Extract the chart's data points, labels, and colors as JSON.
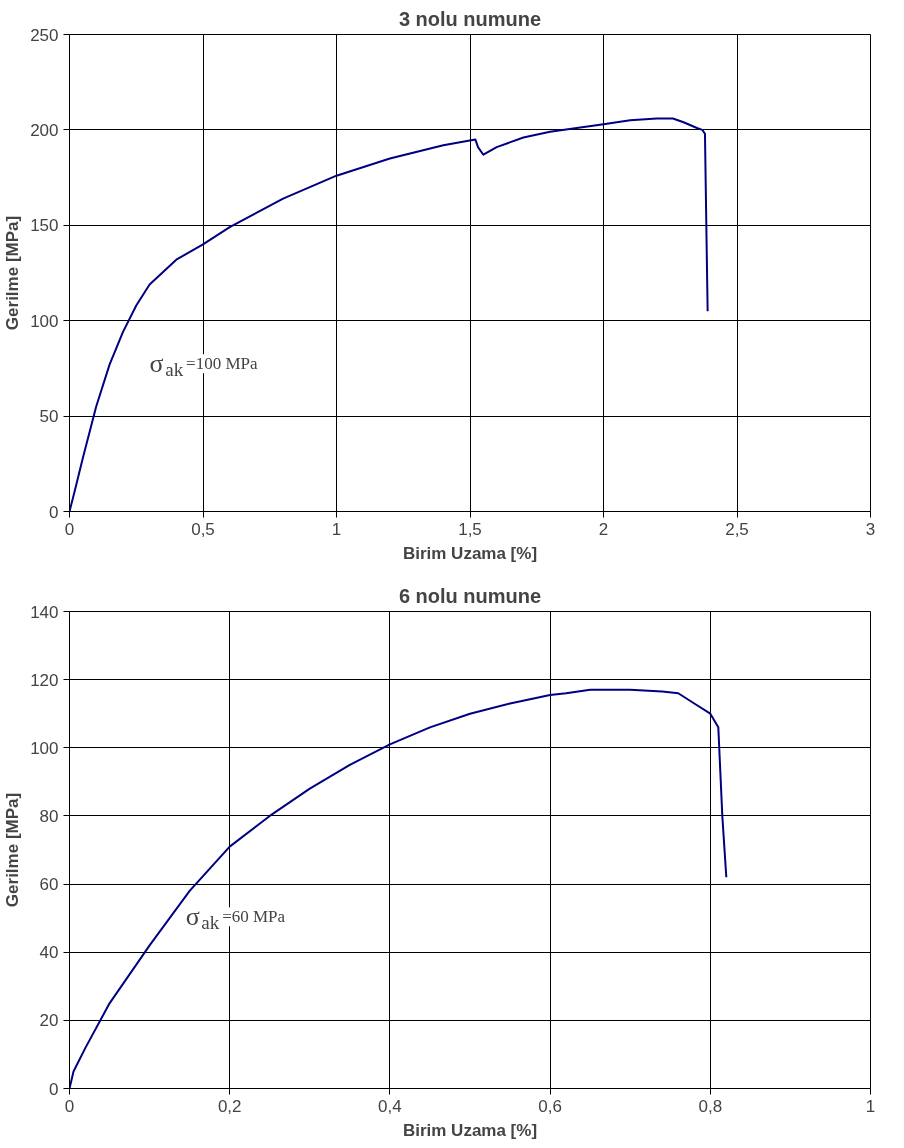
{
  "chart_data": [
    {
      "type": "line",
      "title": "3 nolu numune",
      "xlabel": "Birim Uzama [%]",
      "ylabel": "Gerilme [MPa]",
      "x": [
        0,
        0.02,
        0.05,
        0.1,
        0.15,
        0.2,
        0.25,
        0.3,
        0.4,
        0.5,
        0.6,
        0.8,
        1,
        1.2,
        1.4,
        1.52,
        1.53,
        1.55,
        1.6,
        1.7,
        1.8,
        2,
        2.1,
        2.2,
        2.26,
        2.3,
        2.35,
        2.37,
        2.38,
        2.39
      ],
      "series": [
        {
          "color": "#000080",
          "values": [
            0,
            11,
            28,
            55,
            77,
            94,
            108,
            119,
            132,
            140,
            149,
            164,
            176,
            185,
            192,
            195,
            191,
            187,
            191,
            196,
            199,
            203,
            205,
            206,
            206,
            204,
            201,
            200,
            198,
            105
          ]
        }
      ],
      "xlim": [
        0,
        3
      ],
      "xticks": [
        0,
        {
          "value": 0.5,
          "label": "0,5"
        },
        1,
        {
          "value": 1.5,
          "label": "1,5"
        },
        2,
        {
          "value": 2.5,
          "label": "2,5"
        },
        3
      ],
      "ylim": [
        0,
        250
      ],
      "yticks": [
        0,
        50,
        100,
        150,
        200,
        250
      ],
      "grid": true,
      "line_style": "solid",
      "annotations": [
        "σ$_{ak}$=100 MPa"
      ]
    },
    {
      "type": "line",
      "title": "6 nolu numune",
      "xlabel": "Birim Uzama [%]",
      "ylabel": "Gerilme [MPa]",
      "x": [
        0,
        0.005,
        0.02,
        0.05,
        0.1,
        0.15,
        0.2,
        0.25,
        0.3,
        0.35,
        0.4,
        0.45,
        0.5,
        0.55,
        0.6,
        0.62,
        0.65,
        0.7,
        0.74,
        0.76,
        0.78,
        0.8,
        0.81,
        0.815,
        0.82
      ],
      "series": [
        {
          "color": "#000080",
          "values": [
            0,
            5,
            12,
            25,
            42,
            58,
            71,
            80,
            88,
            95,
            101,
            106,
            110,
            113,
            115.5,
            116,
            117,
            117,
            116.5,
            116,
            113,
            110,
            106,
            80,
            62
          ]
        }
      ],
      "xlim": [
        0,
        1
      ],
      "xticks": [
        0,
        {
          "value": 0.2,
          "label": "0,2"
        },
        {
          "value": 0.4,
          "label": "0,4"
        },
        {
          "value": 0.6,
          "label": "0,6"
        },
        {
          "value": 0.8,
          "label": "0,8"
        },
        1
      ],
      "ylim": [
        0,
        140
      ],
      "yticks": [
        0,
        20,
        40,
        60,
        80,
        100,
        120,
        140
      ],
      "grid": true,
      "line_style": "solid",
      "annotations": [
        "σ$_{ak}$=60 MPa"
      ]
    }
  ]
}
